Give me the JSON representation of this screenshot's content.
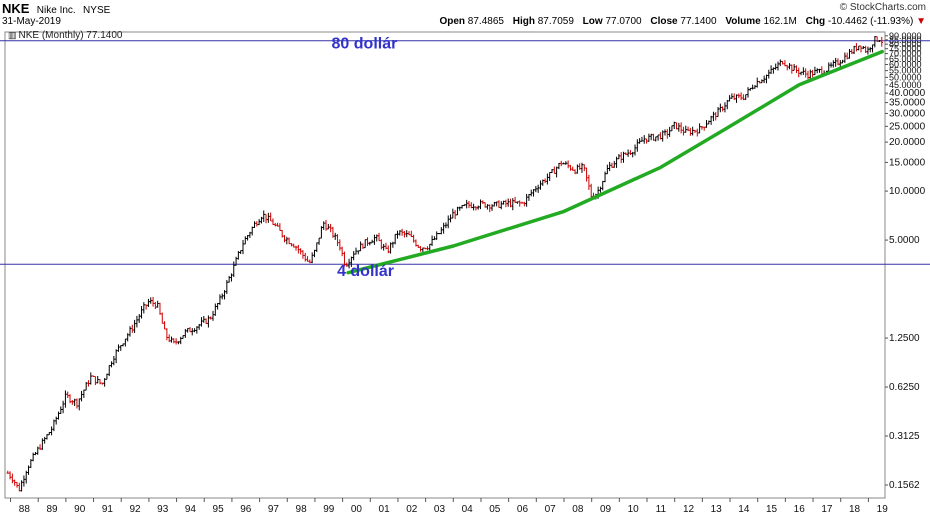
{
  "header": {
    "symbol": "NKE",
    "name": "Nike Inc.",
    "exchange": "NYSE",
    "date": "31-May-2019",
    "brand": "© StockCharts.com",
    "open_label": "Open",
    "open": "87.4865",
    "high_label": "High",
    "high": "87.7059",
    "low_label": "Low",
    "low": "77.0700",
    "close_label": "Close",
    "close": "77.1400",
    "volume_label": "Volume",
    "volume": "162.1M",
    "chg_label": "Chg",
    "chg": "-10.4462 (-11.93%)",
    "chg_arrow": "▼",
    "legend": "NKE (Monthly) 77.1400"
  },
  "colors": {
    "up": "#000000",
    "down": "#cc0000",
    "hline": "#3333aa",
    "trend": "#22aa22",
    "annotation": "#3333cc"
  },
  "annotations": [
    {
      "text": "80 dollár",
      "year": 1999.6,
      "price": 75
    },
    {
      "text": "4 dollár",
      "year": 1999.8,
      "price": 3
    }
  ],
  "chart_data": {
    "type": "bar",
    "scale": "log",
    "grid": false,
    "frequency": "monthly",
    "ylim": [
      0.13,
      95
    ],
    "xlim": [
      1987.8,
      2019.6
    ],
    "x_tick_labels": [
      "88",
      "89",
      "90",
      "91",
      "92",
      "93",
      "94",
      "95",
      "96",
      "97",
      "98",
      "99",
      "00",
      "01",
      "02",
      "03",
      "04",
      "05",
      "06",
      "07",
      "08",
      "09",
      "10",
      "11",
      "12",
      "13",
      "14",
      "15",
      "16",
      "17",
      "18",
      "19"
    ],
    "y_tick_labels": [
      "90.0000",
      "85.0000",
      "80.0000",
      "75.0000",
      "70.0000",
      "65.0000",
      "60.0000",
      "55.0000",
      "50.0000",
      "45.0000",
      "40.0000",
      "35.0000",
      "30.0000",
      "25.0000",
      "20.0000",
      "15.0000",
      "10.0000",
      "5.0000",
      "1.2500",
      "0.6250",
      "0.3125",
      "0.1562"
    ],
    "y_tick_values": [
      90,
      85,
      80,
      75,
      70,
      65,
      60,
      55,
      50,
      45,
      40,
      35,
      30,
      25,
      20,
      15,
      10,
      5,
      1.25,
      0.625,
      0.3125,
      0.1562
    ],
    "price_path": [
      [
        1987.9,
        0.185
      ],
      [
        1988.1,
        0.17
      ],
      [
        1988.3,
        0.145
      ],
      [
        1988.6,
        0.2
      ],
      [
        1989.0,
        0.26
      ],
      [
        1989.5,
        0.35
      ],
      [
        1990.0,
        0.55
      ],
      [
        1990.4,
        0.5
      ],
      [
        1990.9,
        0.72
      ],
      [
        1991.3,
        0.65
      ],
      [
        1991.7,
        0.95
      ],
      [
        1992.0,
        1.15
      ],
      [
        1992.4,
        1.45
      ],
      [
        1992.8,
        1.9
      ],
      [
        1993.0,
        2.1
      ],
      [
        1993.3,
        2.0
      ],
      [
        1993.6,
        1.3
      ],
      [
        1993.9,
        1.15
      ],
      [
        1994.3,
        1.35
      ],
      [
        1994.8,
        1.5
      ],
      [
        1995.2,
        1.65
      ],
      [
        1995.6,
        2.2
      ],
      [
        1996.0,
        3.2
      ],
      [
        1996.4,
        4.8
      ],
      [
        1996.8,
        6.2
      ],
      [
        1997.1,
        7.2
      ],
      [
        1997.5,
        6.3
      ],
      [
        1997.9,
        5.2
      ],
      [
        1998.3,
        4.6
      ],
      [
        1998.8,
        3.6
      ],
      [
        1999.0,
        4.3
      ],
      [
        1999.3,
        6.4
      ],
      [
        1999.6,
        5.6
      ],
      [
        1999.9,
        4.6
      ],
      [
        2000.1,
        3.5
      ],
      [
        2000.4,
        4.2
      ],
      [
        2000.8,
        4.8
      ],
      [
        2001.2,
        5.2
      ],
      [
        2001.6,
        4.2
      ],
      [
        2002.0,
        5.6
      ],
      [
        2002.4,
        5.3
      ],
      [
        2002.8,
        4.5
      ],
      [
        2003.1,
        4.6
      ],
      [
        2003.6,
        5.8
      ],
      [
        2004.0,
        7.3
      ],
      [
        2004.5,
        8.2
      ],
      [
        2005.0,
        8.3
      ],
      [
        2005.5,
        8.2
      ],
      [
        2006.0,
        8.4
      ],
      [
        2006.5,
        8.4
      ],
      [
        2007.0,
        10.6
      ],
      [
        2007.5,
        12.6
      ],
      [
        2007.9,
        15.0
      ],
      [
        2008.4,
        13.5
      ],
      [
        2008.7,
        14.0
      ],
      [
        2009.0,
        9.2
      ],
      [
        2009.2,
        9.8
      ],
      [
        2009.6,
        14.0
      ],
      [
        2010.0,
        16.0
      ],
      [
        2010.5,
        18.0
      ],
      [
        2010.9,
        21.0
      ],
      [
        2011.3,
        21.5
      ],
      [
        2011.7,
        22.5
      ],
      [
        2012.0,
        25.5
      ],
      [
        2012.4,
        23.0
      ],
      [
        2012.9,
        24.0
      ],
      [
        2013.2,
        27.0
      ],
      [
        2013.6,
        31.0
      ],
      [
        2014.0,
        37.0
      ],
      [
        2014.5,
        38.0
      ],
      [
        2014.9,
        46.0
      ],
      [
        2015.3,
        51.0
      ],
      [
        2015.9,
        63.0
      ],
      [
        2016.3,
        56.0
      ],
      [
        2016.8,
        52.0
      ],
      [
        2017.1,
        54.0
      ],
      [
        2017.5,
        56.0
      ],
      [
        2017.9,
        62.0
      ],
      [
        2018.3,
        70.0
      ],
      [
        2018.7,
        80.0
      ],
      [
        2018.95,
        72.0
      ],
      [
        2019.2,
        85.0
      ],
      [
        2019.45,
        87.0
      ],
      [
        2019.55,
        77.14
      ]
    ],
    "reference_lines": [
      {
        "price": 84
      },
      {
        "price": 3.55
      }
    ],
    "trendline": [
      [
        2000.2,
        3.15
      ],
      [
        2004.0,
        4.6
      ],
      [
        2008.0,
        7.5
      ],
      [
        2011.5,
        14.0
      ],
      [
        2014.0,
        25.0
      ],
      [
        2016.5,
        45.0
      ],
      [
        2019.5,
        72.0
      ]
    ]
  }
}
